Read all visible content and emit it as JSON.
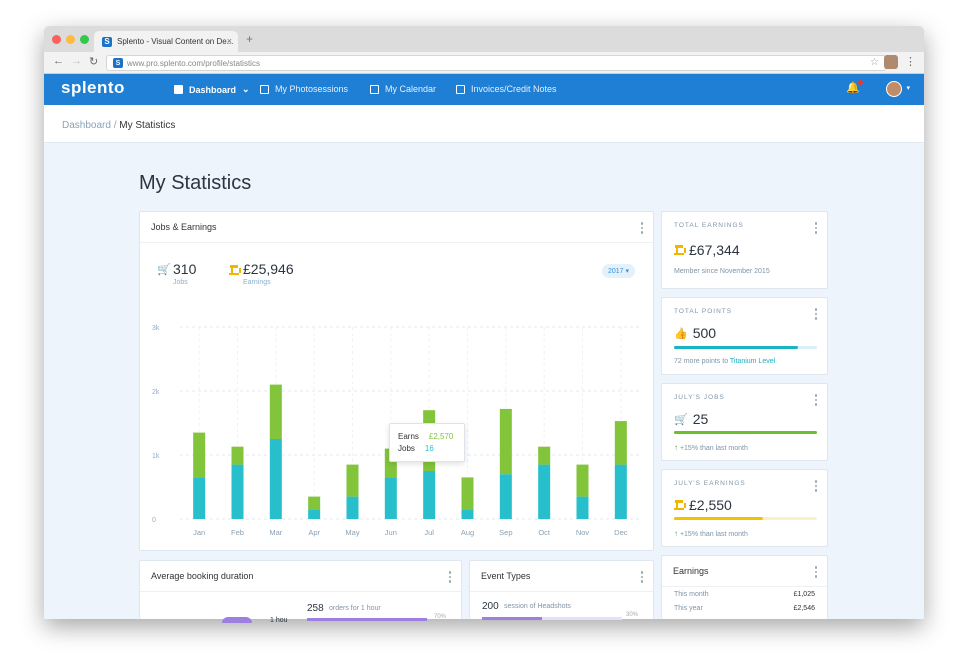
{
  "browser": {
    "tab_title": "Splento - Visual Content on De...",
    "tab_close": "×",
    "new_tab": "+",
    "favicon": "S",
    "url": "www.pro.splento.com/profile/statistics"
  },
  "nav": {
    "logo": "splento",
    "items": [
      {
        "label": "Dashboard",
        "caret": "⌄",
        "icon": "dashboard-icon"
      },
      {
        "label": "My Photosessions",
        "icon": "photo-icon"
      },
      {
        "label": "My Calendar",
        "icon": "calendar-icon"
      },
      {
        "label": "Invoices/Credit Notes",
        "icon": "invoice-icon"
      }
    ]
  },
  "breadcrumb": {
    "root": "Dashboard",
    "separator": " / ",
    "current": "My Statistics"
  },
  "page_title": "My Statistics",
  "jobs_earnings": {
    "title": "Jobs & Earnings",
    "jobs_value": "310",
    "jobs_label": "Jobs",
    "earnings_value": "£25,946",
    "earnings_label": "Earnings",
    "year": "2017 ▾",
    "tooltip": {
      "earns_label": "Earns",
      "earns_value": "£2,570",
      "jobs_label": "Jobs",
      "jobs_value": "16"
    }
  },
  "chart_data": {
    "type": "bar",
    "stacked": true,
    "categories": [
      "Jan",
      "Feb",
      "Mar",
      "Apr",
      "May",
      "Jun",
      "Jul",
      "Aug",
      "Sep",
      "Oct",
      "Nov",
      "Dec"
    ],
    "y_ticks": [
      "0",
      "1k",
      "2k",
      "3k"
    ],
    "ylim": [
      0,
      3000
    ],
    "series": [
      {
        "color": "#26bfcb",
        "values": [
          650,
          850,
          1250,
          150,
          350,
          650,
          750,
          150,
          700,
          850,
          350,
          850
        ]
      },
      {
        "color": "#82c43a",
        "values": [
          700,
          280,
          850,
          200,
          500,
          450,
          950,
          500,
          1020,
          280,
          500,
          680
        ]
      }
    ],
    "legend": "none",
    "grid": true
  },
  "total_earnings": {
    "label": "TOTAL EARNINGS",
    "value": "£67,344",
    "note": "Member since November 2015"
  },
  "total_points": {
    "label": "TOTAL POINTS",
    "value": "500",
    "note_prefix": "72 more points to ",
    "note_link": "Titanium Level",
    "progress": 0.87
  },
  "july_jobs": {
    "label": "JULY'S JOBS",
    "value": "25",
    "note": "+15% than last month",
    "progress": 1.0
  },
  "july_earnings": {
    "label": "JULY'S EARNINGS",
    "value": "£2,550",
    "note": "+15% than last month",
    "progress": 0.62
  },
  "earnings_card": {
    "title": "Earnings",
    "rows": [
      {
        "label": "This month",
        "value": "£1,025"
      },
      {
        "label": "This year",
        "value": "£2,546"
      }
    ]
  },
  "avg_booking": {
    "title": "Average booking duration",
    "value": "258",
    "suffix": "orders for 1 hour",
    "pct": "70%",
    "partial": "1 hou"
  },
  "event_types": {
    "title": "Event Types",
    "value": "200",
    "suffix": "session of Headshots",
    "pct": "30%"
  }
}
